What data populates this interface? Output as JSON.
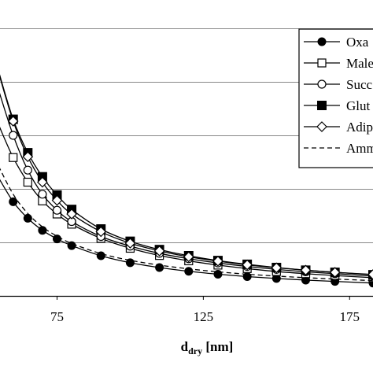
{
  "chart_data": {
    "type": "line",
    "title": "",
    "xlabel": "d",
    "xlabel_sub": "dry",
    "xlabel_unit": " [nm]",
    "ylabel": "",
    "xlim": [
      55.5,
      183
    ],
    "ylim": [
      0,
      1
    ],
    "x_ticks": [
      75,
      125,
      175
    ],
    "y_gridlines": [
      0.2,
      0.4,
      0.6,
      0.8,
      1.0
    ],
    "grid": true,
    "legend_position": "top-right",
    "x": [
      55,
      60,
      65,
      70,
      75,
      80,
      90,
      100,
      110,
      120,
      130,
      140,
      150,
      160,
      170,
      183
    ],
    "series": [
      {
        "name": "Oxa",
        "marker": "filled-circle",
        "line": "solid",
        "values": [
          0.442,
          0.352,
          0.29,
          0.245,
          0.213,
          0.188,
          0.15,
          0.124,
          0.106,
          0.092,
          0.081,
          0.072,
          0.065,
          0.059,
          0.054,
          0.048
        ]
      },
      {
        "name": "Male",
        "marker": "open-square",
        "line": "solid",
        "values": [
          0.64,
          0.517,
          0.425,
          0.355,
          0.306,
          0.268,
          0.215,
          0.178,
          0.151,
          0.131,
          0.115,
          0.102,
          0.091,
          0.083,
          0.076,
          0.068
        ]
      },
      {
        "name": "Succ",
        "marker": "open-circle",
        "line": "solid",
        "values": [
          0.77,
          0.6,
          0.47,
          0.38,
          0.32,
          0.278,
          0.222,
          0.186,
          0.159,
          0.139,
          0.123,
          0.11,
          0.099,
          0.09,
          0.083,
          0.074
        ]
      },
      {
        "name": "Glut",
        "marker": "filled-square",
        "line": "solid",
        "values": [
          0.84,
          0.66,
          0.535,
          0.445,
          0.377,
          0.323,
          0.25,
          0.204,
          0.173,
          0.15,
          0.132,
          0.118,
          0.106,
          0.096,
          0.088,
          0.079
        ]
      },
      {
        "name": "Adip",
        "marker": "open-diamond",
        "line": "solid",
        "values": [
          0.835,
          0.653,
          0.52,
          0.425,
          0.357,
          0.306,
          0.24,
          0.197,
          0.168,
          0.146,
          0.13,
          0.116,
          0.105,
          0.096,
          0.088,
          0.08
        ]
      },
      {
        "name": "Amm",
        "marker": "none",
        "line": "dashed",
        "values": [
          0.485,
          0.38,
          0.308,
          0.258,
          0.223,
          0.196,
          0.158,
          0.133,
          0.115,
          0.101,
          0.09,
          0.081,
          0.074,
          0.068,
          0.063,
          0.057
        ]
      }
    ]
  }
}
